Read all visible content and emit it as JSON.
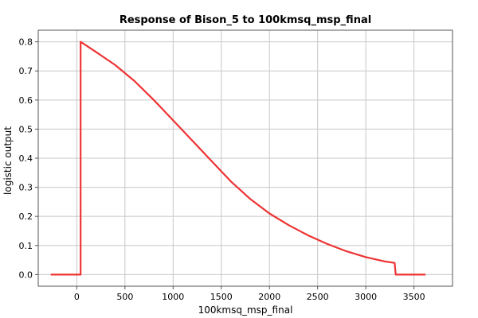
{
  "chart_data": {
    "type": "line",
    "title": "Response of Bison_5 to 100kmsq_msp_final",
    "xlabel": "100kmsq_msp_final",
    "ylabel": "logistic output",
    "xlim": [
      -400,
      3900
    ],
    "ylim": [
      -0.04,
      0.84
    ],
    "xticks": [
      0,
      500,
      1000,
      1500,
      2000,
      2500,
      3000,
      3500
    ],
    "yticks": [
      0.0,
      0.1,
      0.2,
      0.3,
      0.4,
      0.5,
      0.6,
      0.7,
      0.8
    ],
    "ytick_labels": [
      "0.0",
      "0.1",
      "0.2",
      "0.3",
      "0.4",
      "0.5",
      "0.6",
      "0.7",
      "0.8"
    ],
    "grid": true,
    "series": [
      {
        "color": "#ee3333",
        "x": [
          -270,
          40,
          40,
          200,
          400,
          600,
          800,
          1000,
          1200,
          1400,
          1600,
          1800,
          2000,
          2200,
          2400,
          2600,
          2800,
          3000,
          3200,
          3300,
          3310,
          3620
        ],
        "y": [
          0.0,
          0.0,
          0.8,
          0.765,
          0.72,
          0.665,
          0.6,
          0.53,
          0.46,
          0.39,
          0.32,
          0.26,
          0.21,
          0.17,
          0.135,
          0.105,
          0.08,
          0.06,
          0.045,
          0.04,
          0.0,
          0.0
        ]
      }
    ]
  }
}
